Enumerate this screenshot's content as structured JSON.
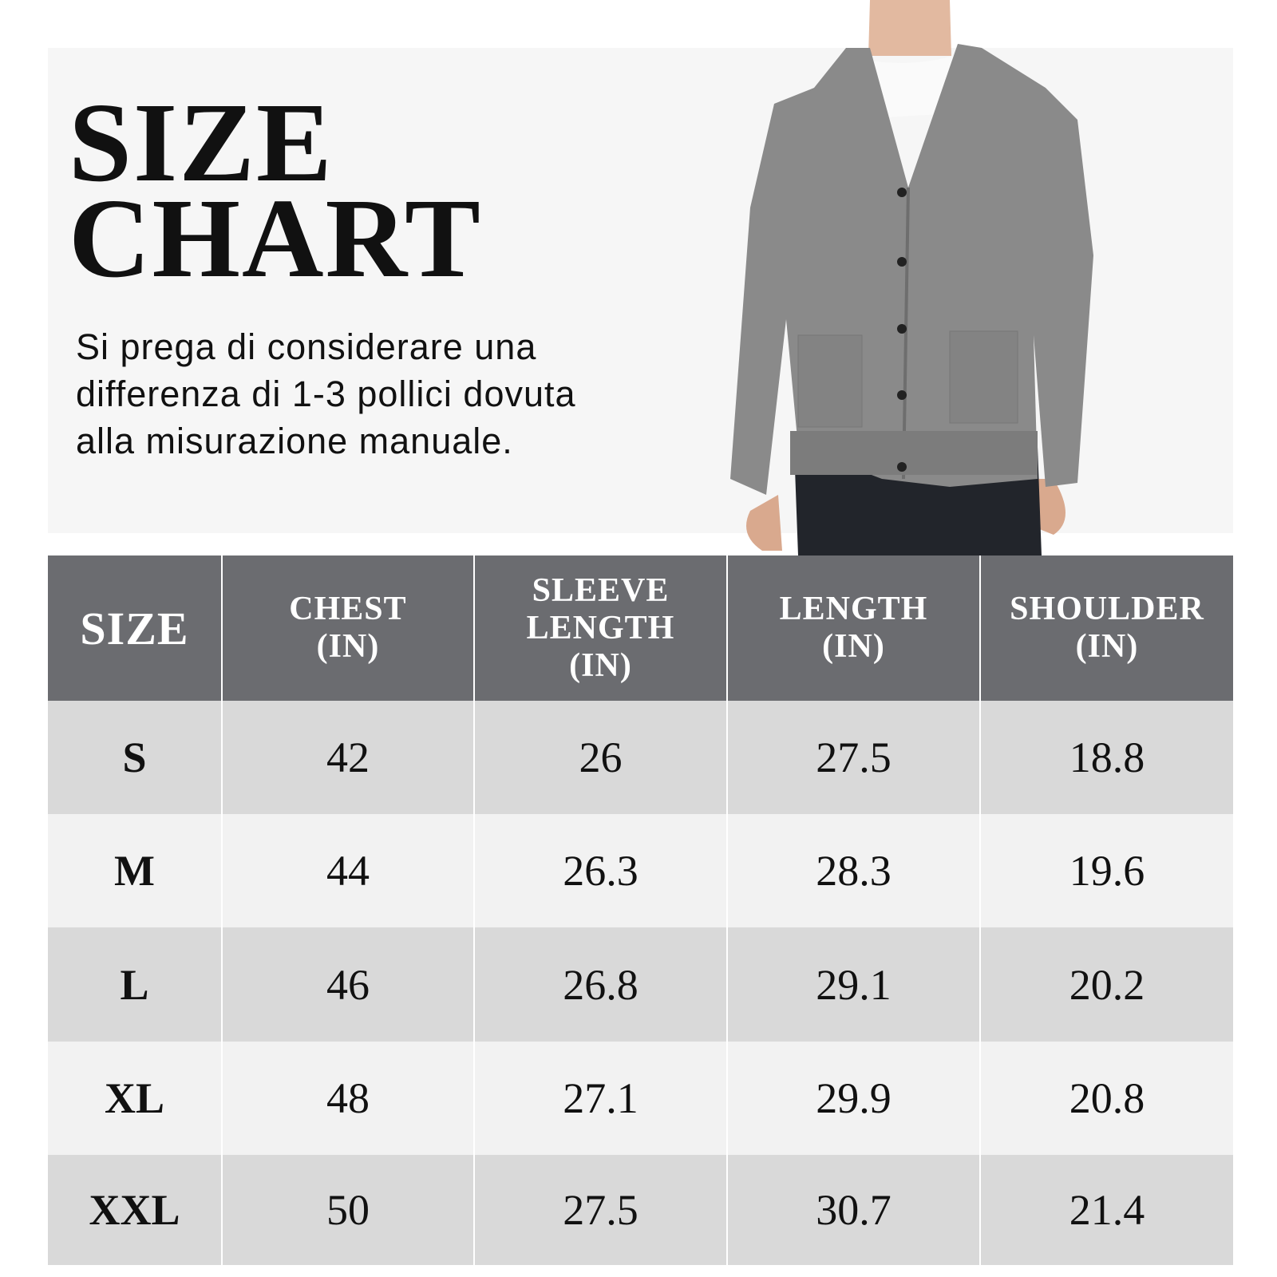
{
  "header": {
    "title": [
      "SIZE",
      "CHART"
    ],
    "subtitle": [
      "Si prega di considerare una",
      "differenza di 1-3 pollici dovuta",
      "alla misurazione manuale."
    ]
  },
  "table": {
    "headers": [
      [
        "SIZE"
      ],
      [
        "CHEST",
        "(IN)"
      ],
      [
        "SLEEVE",
        "LENGTH",
        "(IN)"
      ],
      [
        "LENGTH",
        "(IN)"
      ],
      [
        "SHOULDER",
        "(IN)"
      ]
    ],
    "rows": [
      [
        "S",
        42,
        26,
        27.5,
        18.8
      ],
      [
        "M",
        44,
        26.3,
        28.3,
        19.6
      ],
      [
        "L",
        46,
        26.8,
        29.1,
        20.2
      ],
      [
        "XL",
        48,
        27.1,
        29.9,
        20.8
      ],
      [
        "XXL",
        50,
        27.5,
        30.7,
        21.4
      ]
    ]
  }
}
